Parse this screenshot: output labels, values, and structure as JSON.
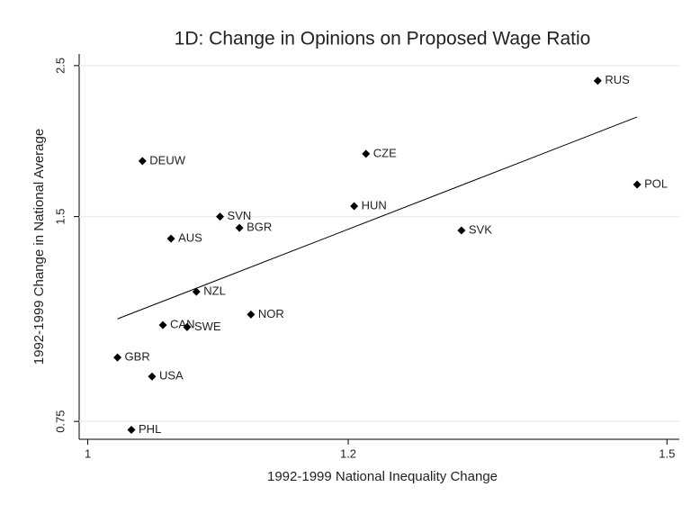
{
  "chart_data": {
    "type": "scatter",
    "title": "1D: Change in Opinions on Proposed Wage Ratio",
    "xlabel": "1992-1999 National Inequality Change",
    "ylabel": "1992-1999 Change in National Average",
    "labels": [
      "RUS",
      "POL",
      "CZE",
      "HUN",
      "SVK",
      "DEUW",
      "SVN",
      "BGR",
      "AUS",
      "NZL",
      "NOR",
      "CAN",
      "SWE",
      "GBR",
      "USA",
      "PHL"
    ],
    "x": [
      1.429,
      1.469,
      1.215,
      1.205,
      1.299,
      1.039,
      1.097,
      1.112,
      1.06,
      1.079,
      1.121,
      1.054,
      1.072,
      1.021,
      1.046,
      1.031
    ],
    "values": [
      2.375,
      1.672,
      1.855,
      1.554,
      1.431,
      1.81,
      1.5,
      1.444,
      1.392,
      1.163,
      1.077,
      1.039,
      1.032,
      0.931,
      0.873,
      0.729
    ],
    "color": "#000000",
    "fit_line": {
      "x": [
        1.021,
        1.469
      ],
      "values": [
        1.061,
        2.101
      ]
    },
    "xlim": [
      0.994,
      1.513
    ],
    "ylim": [
      0.706,
      2.6
    ],
    "xticks": [
      1,
      1.2,
      1.5
    ],
    "yticks": [
      0.75,
      1.5,
      2.5
    ],
    "xlog": true,
    "ylog": true,
    "grid": true
  }
}
